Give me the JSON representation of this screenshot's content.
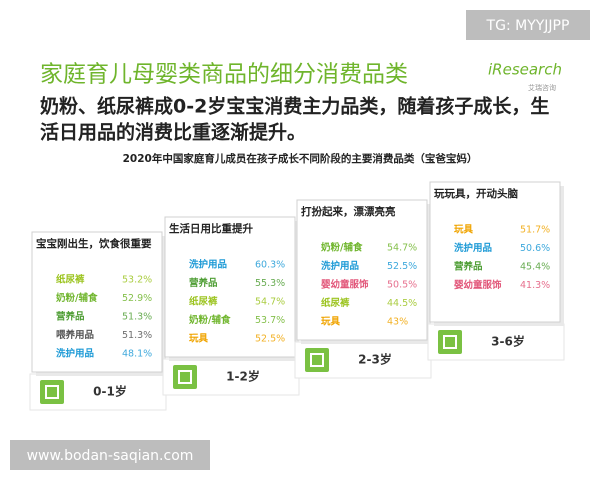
{
  "watermark_top": "TG: MYYJJPP",
  "logo": {
    "brand": "iResearch",
    "sub": "艾瑞咨询"
  },
  "title": "家庭育儿母婴类商品的细分消费品类",
  "subtitle": [
    "奶粉、纸尿裤成0-2岁宝宝消费主力品类，随着孩子成长，生",
    "活日用品的消费比重逐渐提升。"
  ],
  "chart_title": "2020年中国家庭育儿成员在孩子成长不同阶段的主要消费品类（宝爸宝妈）",
  "cards": [
    {
      "header": "宝宝刚出生，饮食很重要",
      "stage": "0-1岁",
      "items": [
        {
          "label": "纸尿裤",
          "value": "53.2%",
          "color": "#9cc420"
        },
        {
          "label": "奶粉/辅食",
          "value": "52.9%",
          "color": "#6fb52c"
        },
        {
          "label": "营养品",
          "value": "51.3%",
          "color": "#4f9e35"
        },
        {
          "label": "喂养用品",
          "value": "51.3%",
          "color": "#555555"
        },
        {
          "label": "洗护用品",
          "value": "48.1%",
          "color": "#1d9ad6"
        }
      ]
    },
    {
      "header": "生活日用比重提升",
      "stage": "1-2岁",
      "items": [
        {
          "label": "洗护用品",
          "value": "60.3%",
          "color": "#1d9ad6"
        },
        {
          "label": "营养品",
          "value": "55.3%",
          "color": "#4f9e35"
        },
        {
          "label": "纸尿裤",
          "value": "54.7%",
          "color": "#9cc420"
        },
        {
          "label": "奶粉/辅食",
          "value": "53.7%",
          "color": "#6fb52c"
        },
        {
          "label": "玩具",
          "value": "52.5%",
          "color": "#f0a400"
        }
      ]
    },
    {
      "header": "打扮起来，漂漂亮亮",
      "stage": "2-3岁",
      "items": [
        {
          "label": "奶粉/辅食",
          "value": "54.7%",
          "color": "#6fb52c"
        },
        {
          "label": "洗护用品",
          "value": "52.5%",
          "color": "#1d9ad6"
        },
        {
          "label": "婴幼童服饰",
          "value": "50.5%",
          "color": "#e2577a"
        },
        {
          "label": "纸尿裤",
          "value": "44.5%",
          "color": "#9cc420"
        },
        {
          "label": "玩具",
          "value": "43%",
          "color": "#f0a400"
        }
      ]
    },
    {
      "header": "玩玩具，开动头脑",
      "stage": "3-6岁",
      "items": [
        {
          "label": "玩具",
          "value": "51.7%",
          "color": "#f0a400"
        },
        {
          "label": "洗护用品",
          "value": "50.6%",
          "color": "#1d9ad6"
        },
        {
          "label": "营养品",
          "value": "45.4%",
          "color": "#4f9e35"
        },
        {
          "label": "婴幼童服饰",
          "value": "41.3%",
          "color": "#e2577a"
        }
      ]
    }
  ],
  "watermark_bottom": "www.bodan-saqian.com"
}
